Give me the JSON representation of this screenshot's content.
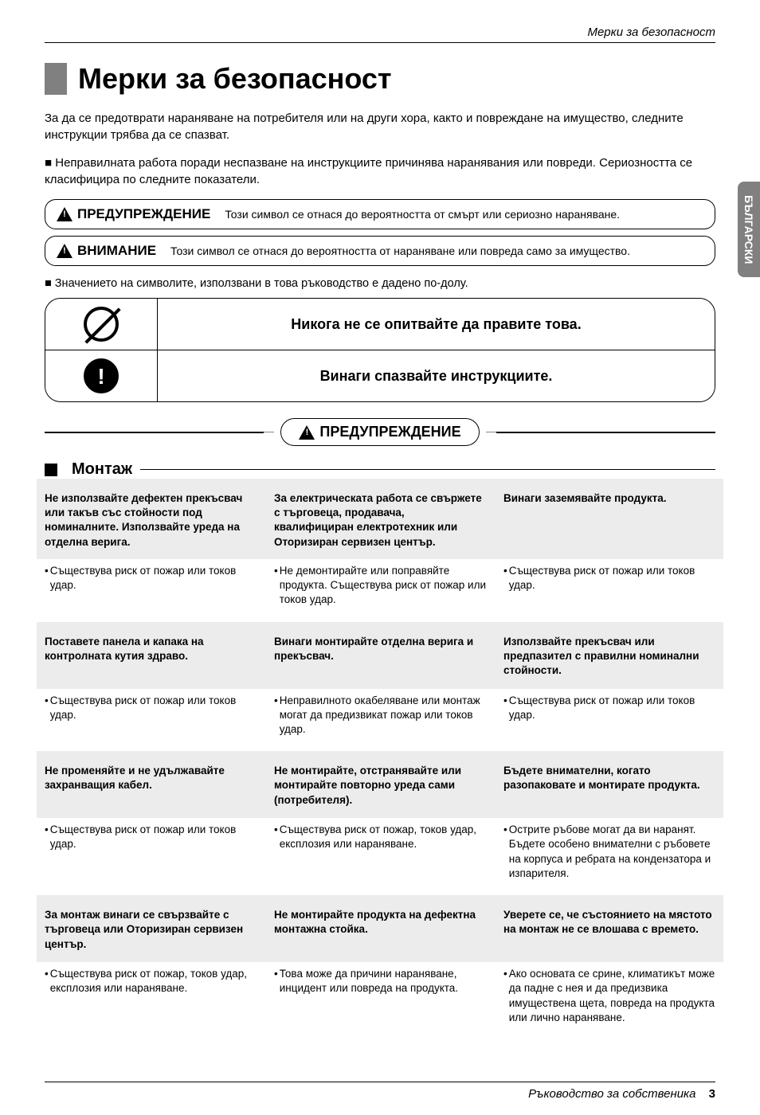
{
  "running_head": "Мерки за безопасност",
  "side_tab": "БЪЛГАРСКИ",
  "h1": "Мерки за безопасност",
  "intro1": "За да се предотврати нараняване на потребителя или на други хора, както и повреждане на имущество, следните инструкции трябва да се спазват.",
  "intro2": "Неправилната работа поради неспазване на инструкциите причинява наранявания или повреди. Сериозността се класифицира по следните показатели.",
  "warn_label": "ПРЕДУПРЕЖДЕНИЕ",
  "warn_desc": "Този символ се отнася до вероятността от смърт или сериозно нараняване.",
  "attn_label": "ВНИМАНИЕ",
  "attn_desc": "Този символ се отнася до вероятността от нараняване или повреда само за имущество.",
  "meaning_note": "Значението на символите, използвани в това ръководство е дадено по-долу.",
  "rule_never": "Никога не се опитвайте да правите това.",
  "rule_always": "Винаги спазвайте инструкциите.",
  "big_warn": "ПРЕДУПРЕЖДЕНИЕ",
  "section_mount": "Монтаж",
  "rows": [
    {
      "shaded": true,
      "c1h": "Не използвайте дефектен прекъсвач или такъв със стойности под номиналните. Използвайте уреда на отделна верига.",
      "c2h": "За електрическата работа се свържете с търговеца, продавача, квалифициран електротехник или Оторизиран сервизен център.",
      "c3h": "Винаги заземявайте продукта."
    },
    {
      "shaded": false,
      "c1b": "Съществува риск от пожар или токов удар.",
      "c2b": "Не демонтирайте или поправяйте продукта. Съществува риск от пожар или токов удар.",
      "c3b": "Съществува риск от пожар или токов удар."
    },
    {
      "shaded": true,
      "c1h": "Поставете панела и капака на контролната кутия здраво.",
      "c2h": "Винаги монтирайте отделна верига и прекъсвач.",
      "c3h": "Използвайте прекъсвач или предпазител с правилни номинални стойности."
    },
    {
      "shaded": false,
      "c1b": "Съществува риск от пожар или токов удар.",
      "c2b": "Неправилното окабеляване или монтаж могат да предизвикат пожар или токов удар.",
      "c3b": "Съществува риск от пожар или токов удар."
    },
    {
      "shaded": true,
      "c1h": "Не променяйте и не удължавайте захранващия кабел.",
      "c2h": "Не монтирайте, отстранявайте или монтирайте повторно уреда сами (потребителя).",
      "c3h": "Бъдете внимателни, когато разопаковате и монтирате продукта."
    },
    {
      "shaded": false,
      "c1b": "Съществува риск от пожар или токов удар.",
      "c2b": "Съществува риск от пожар, токов удар, експлозия или нараняване.",
      "c3b": "Острите ръбове могат да ви наранят. Бъдете особено внимателни с ръбовете на корпуса и ребрата на кондензатора и изпарителя."
    },
    {
      "shaded": true,
      "c1h": "За монтаж винаги се свързвайте с търговеца или Оторизиран сервизен център.",
      "c2h": "Не монтирайте продукта на дефектна монтажна стойка.",
      "c3h": "Уверете се, че състоянието на мястото на монтаж не се влошава с времето."
    },
    {
      "shaded": false,
      "c1b": "Съществува риск от пожар, токов удар, експлозия или нараняване.",
      "c2b": "Това може да причини нараняване, инцидент или повреда на продукта.",
      "c3b": "Ако основата се срине, климатикът може да падне с нея и да предизвика имуществена щета, повреда на продукта или лично нараняване."
    }
  ],
  "footer_text": "Ръководство за собственика",
  "page_num": "3",
  "colors": {
    "gray": "#808080",
    "shade": "#ececec"
  }
}
